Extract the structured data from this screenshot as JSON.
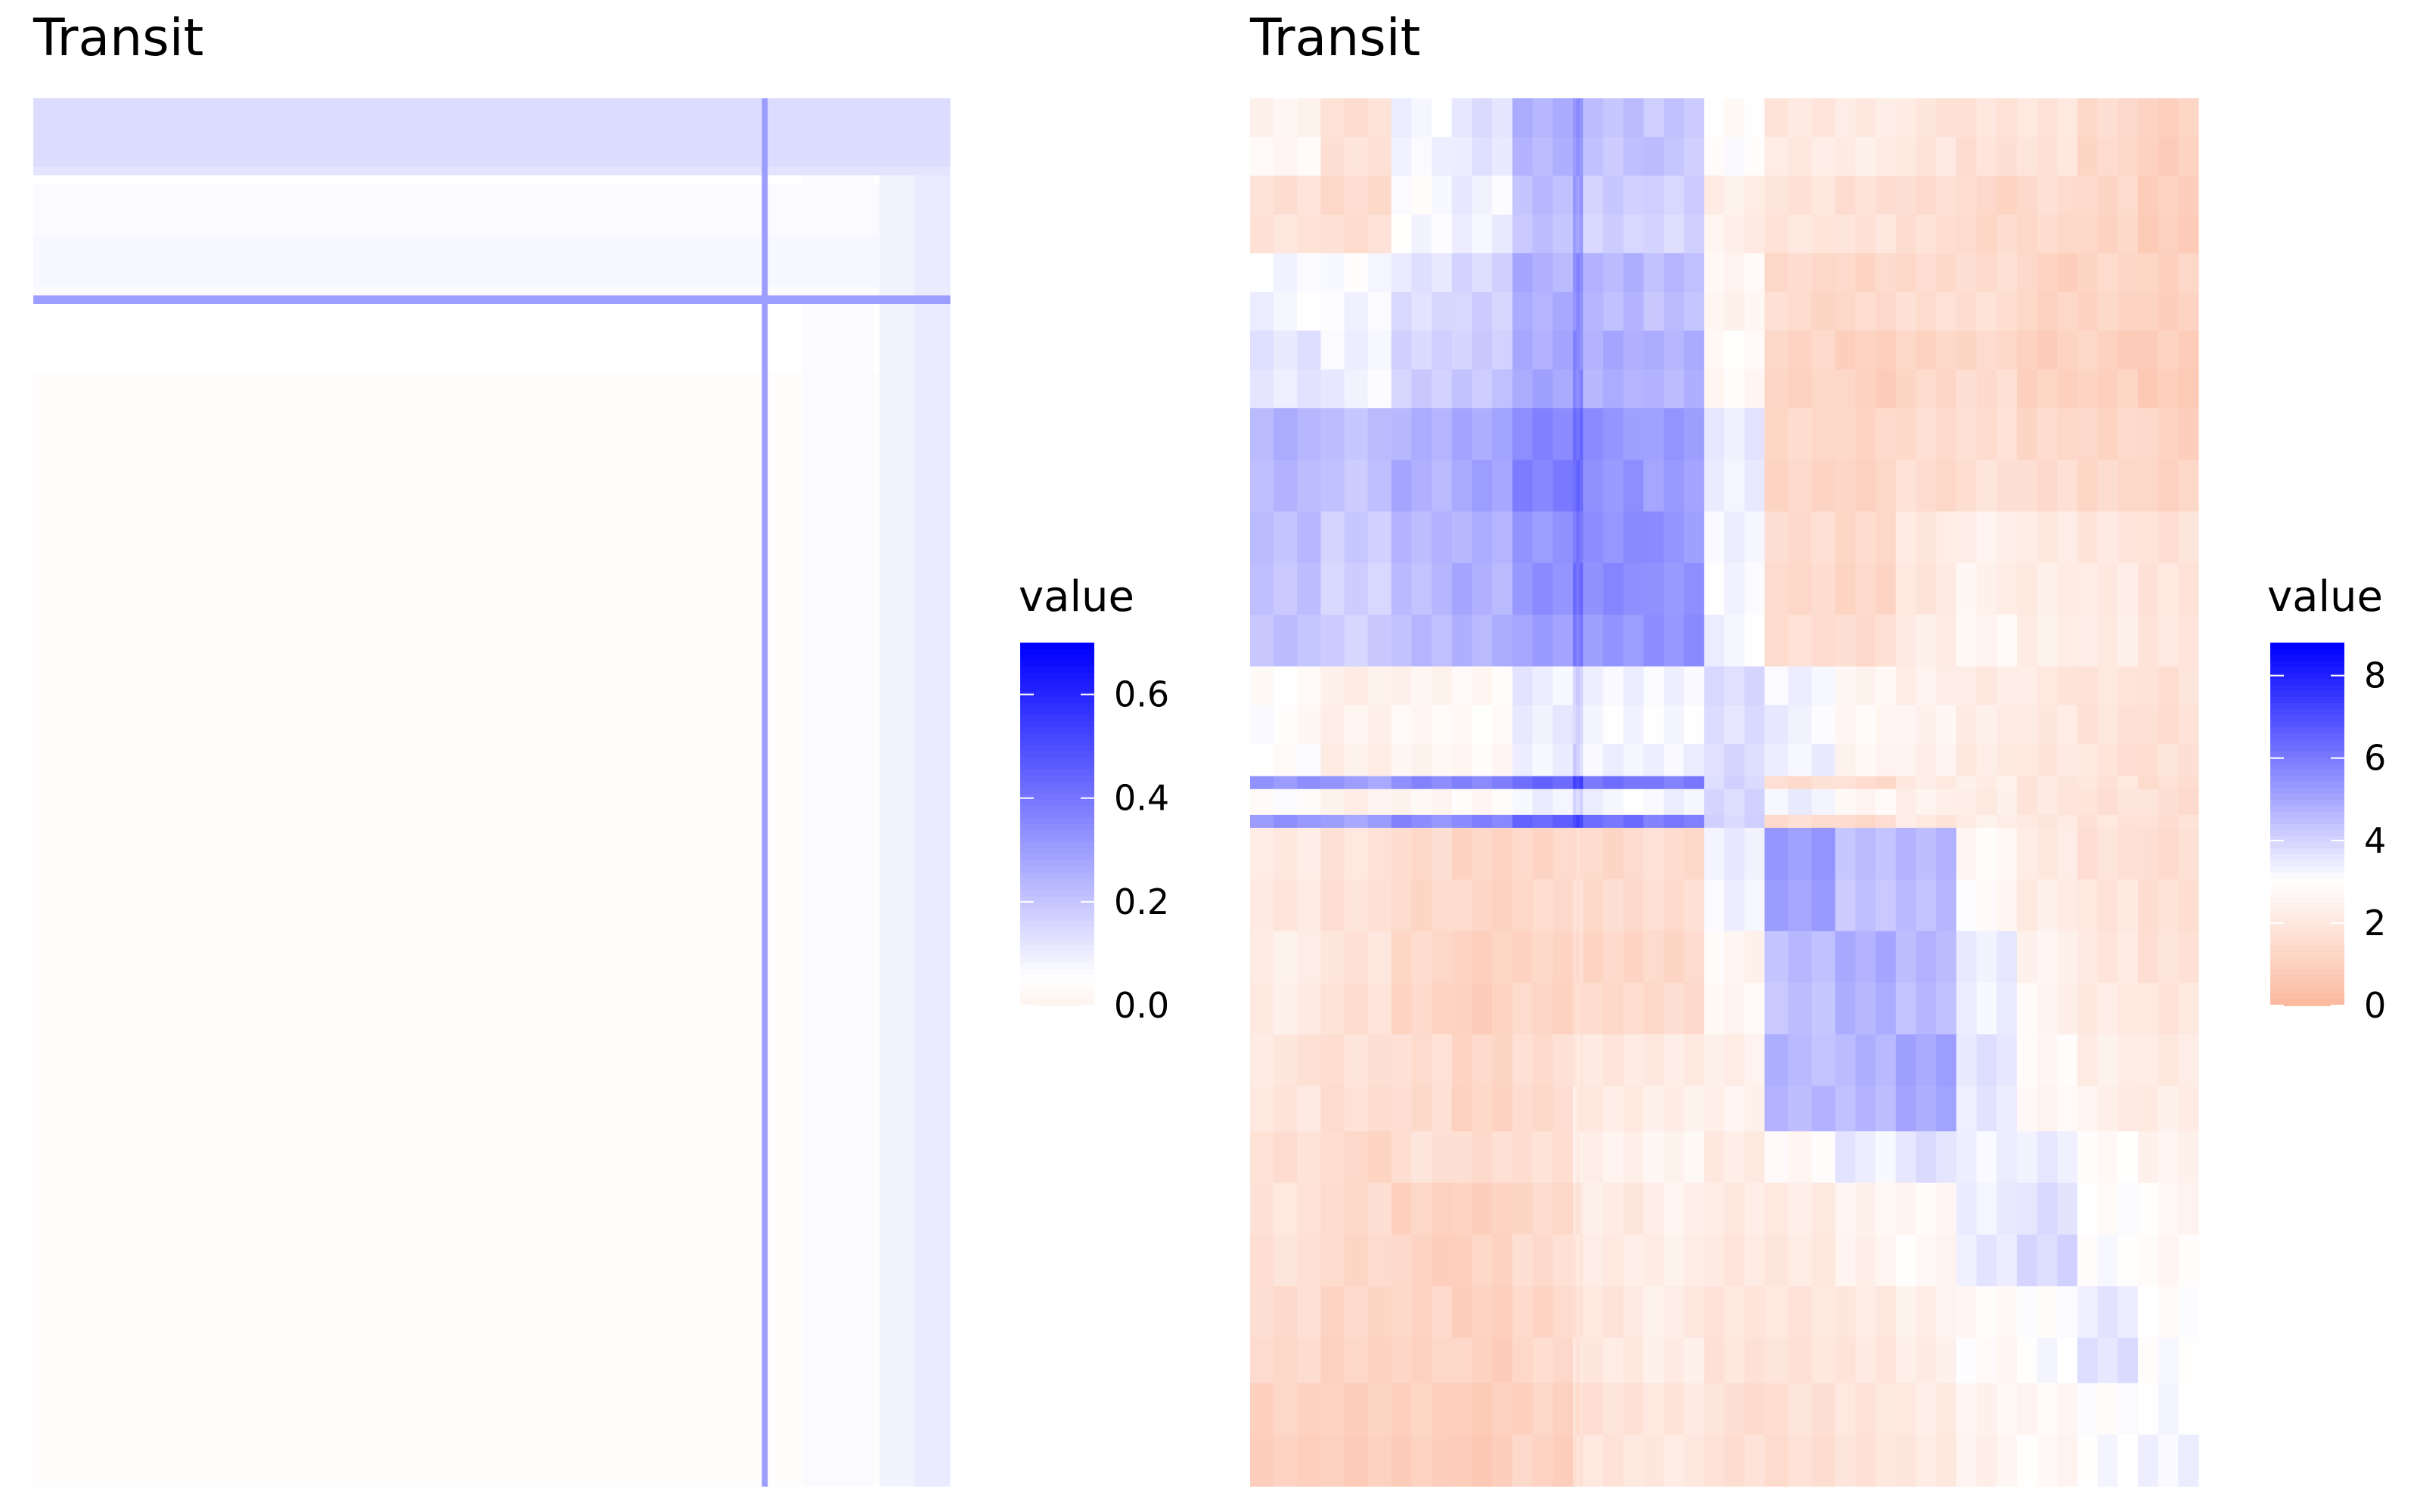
{
  "chart_data": [
    {
      "type": "heatmap",
      "title": "Transit",
      "xlabel": "",
      "ylabel": "",
      "grid": false,
      "legend": {
        "title": "value",
        "position": "right",
        "range": [
          0,
          0.7
        ],
        "ticks": [
          0.0,
          0.2,
          0.4,
          0.6
        ],
        "tick_labels": [
          "0.0",
          "0.2",
          "0.4",
          "0.6"
        ],
        "low_color": "#fff5f0",
        "mid_color": "#ffffff",
        "high_color": "#0000ff",
        "midpoint": 0.05
      },
      "x_blocks": [
        10,
        6,
        6,
        6,
        6,
        6,
        6,
        6,
        6,
        6,
        6,
        6,
        6,
        6,
        6,
        6,
        6,
        6,
        6,
        6,
        1,
        6,
        6,
        6,
        1,
        6,
        6
      ],
      "x_values": [
        0.04,
        0.04,
        0.04,
        0.04,
        0.04,
        0.04,
        0.04,
        0.04,
        0.04,
        0.04,
        0.04,
        0.04,
        0.04,
        0.04,
        0.04,
        0.04,
        0.04,
        0.04,
        0.04,
        0.04,
        0.3,
        0.04,
        0.06,
        0.06,
        0.04,
        0.08,
        0.1
      ],
      "row_blocks": [
        8,
        1,
        1,
        6,
        6,
        1,
        1,
        8,
        8,
        1,
        1,
        8,
        8,
        8,
        8,
        8,
        8,
        8,
        8,
        8,
        8,
        8,
        8,
        8,
        8,
        8
      ],
      "row_values": [
        0.14,
        0.12,
        0.05,
        0.06,
        0.07,
        0.06,
        0.3,
        0.05,
        0.04,
        0.035,
        0.03,
        0.03,
        0.025,
        0.02,
        0.02,
        0.02,
        0.02,
        0.02,
        0.02,
        0.02,
        0.02,
        0.02,
        0.02,
        0.02,
        0.02,
        0.02
      ]
    },
    {
      "type": "heatmap",
      "title": "Transit",
      "xlabel": "",
      "ylabel": "",
      "grid": false,
      "legend": {
        "title": "value",
        "position": "right",
        "range": [
          0,
          8.8
        ],
        "ticks": [
          0,
          2,
          4,
          6,
          8
        ],
        "tick_labels": [
          "0",
          "2",
          "4",
          "6",
          "8"
        ],
        "low_color": "#fcbba1",
        "mid_color": "#ffffff",
        "high_color": "#0000ff",
        "midpoint": 3
      },
      "block_sizes": [
        7,
        7,
        6,
        6,
        6,
        1,
        6,
        6,
        6,
        7,
        6,
        6,
        6,
        6,
        6,
        6
      ],
      "block_values": [
        [
          2.6,
          1.7,
          3.2,
          3.6,
          4.7,
          5.5,
          4.4,
          4.3,
          2.9,
          2.0,
          2.2,
          1.9,
          1.7,
          1.8,
          1.4,
          1.0
        ],
        [
          1.7,
          1.5,
          3.1,
          3.3,
          4.4,
          5.2,
          4.1,
          4.0,
          2.3,
          1.8,
          1.7,
          1.6,
          1.3,
          1.4,
          1.2,
          0.9
        ],
        [
          3.2,
          3.1,
          3.7,
          4.0,
          4.8,
          5.6,
          4.6,
          4.5,
          2.6,
          1.4,
          1.3,
          1.5,
          1.6,
          1.1,
          1.2,
          1.0
        ],
        [
          3.6,
          3.3,
          4.0,
          4.2,
          5.0,
          5.7,
          4.8,
          4.7,
          2.8,
          1.2,
          1.0,
          1.2,
          1.4,
          1.0,
          1.0,
          0.8
        ],
        [
          4.7,
          4.4,
          4.8,
          5.0,
          5.8,
          6.4,
          5.4,
          5.2,
          3.4,
          1.3,
          1.2,
          1.5,
          1.6,
          1.4,
          1.3,
          1.1
        ],
        [
          5.5,
          5.2,
          5.6,
          5.7,
          6.4,
          7.2,
          6.2,
          6.0,
          4.0,
          1.6,
          1.5,
          2.0,
          2.2,
          1.9,
          1.8,
          1.6
        ],
        [
          4.4,
          4.1,
          4.6,
          4.8,
          5.4,
          6.2,
          5.6,
          5.4,
          3.2,
          1.4,
          1.3,
          2.0,
          2.4,
          2.1,
          2.0,
          1.8
        ],
        [
          4.3,
          4.0,
          4.5,
          4.7,
          5.2,
          6.0,
          5.4,
          5.6,
          3.2,
          1.5,
          1.4,
          2.2,
          2.6,
          2.3,
          2.2,
          2.0
        ],
        [
          2.9,
          2.3,
          2.6,
          2.8,
          3.4,
          4.0,
          3.2,
          3.2,
          3.8,
          3.3,
          2.6,
          2.4,
          2.2,
          2.0,
          1.8,
          1.6
        ],
        [
          2.0,
          1.8,
          1.4,
          1.2,
          1.3,
          1.6,
          1.4,
          1.5,
          3.3,
          5.2,
          4.4,
          4.6,
          2.8,
          2.1,
          1.8,
          1.6
        ],
        [
          2.2,
          1.7,
          1.3,
          1.0,
          1.2,
          1.5,
          1.3,
          1.4,
          2.6,
          4.4,
          4.8,
          4.6,
          3.4,
          2.5,
          2.0,
          1.8
        ],
        [
          1.9,
          1.6,
          1.5,
          1.2,
          1.5,
          2.0,
          2.0,
          2.2,
          2.4,
          4.6,
          4.6,
          5.0,
          3.6,
          2.7,
          2.3,
          2.1
        ],
        [
          1.7,
          1.3,
          1.6,
          1.4,
          1.6,
          2.2,
          2.4,
          2.6,
          2.2,
          2.8,
          3.4,
          3.6,
          3.2,
          3.4,
          2.8,
          2.5
        ],
        [
          1.8,
          1.4,
          1.1,
          1.0,
          1.4,
          1.9,
          2.1,
          2.3,
          2.0,
          2.1,
          2.5,
          2.7,
          3.4,
          3.8,
          3.0,
          2.7
        ],
        [
          1.4,
          1.2,
          1.2,
          1.0,
          1.3,
          1.8,
          2.0,
          2.2,
          1.8,
          1.8,
          2.0,
          2.3,
          2.8,
          3.0,
          3.6,
          3.0
        ],
        [
          1.0,
          0.9,
          1.0,
          0.8,
          1.1,
          1.6,
          1.8,
          2.0,
          1.6,
          1.6,
          1.8,
          2.1,
          2.5,
          2.7,
          3.0,
          3.2
        ]
      ],
      "row_blocks": [
        {
          "block": 0,
          "span": 6
        },
        {
          "block": 0,
          "span": 6
        },
        {
          "block": 1,
          "span": 6
        },
        {
          "block": 1,
          "span": 6
        },
        {
          "block": 2,
          "span": 6
        },
        {
          "block": 2,
          "span": 6
        },
        {
          "block": 3,
          "span": 6
        },
        {
          "block": 3,
          "span": 6
        },
        {
          "block": 4,
          "span": 8
        },
        {
          "block": 4,
          "span": 8
        },
        {
          "block": 6,
          "span": 8
        },
        {
          "block": 6,
          "span": 8
        },
        {
          "block": 7,
          "span": 8
        },
        {
          "block": 8,
          "span": 6
        },
        {
          "block": 8,
          "span": 6
        },
        {
          "block": 8,
          "span": 5
        },
        {
          "block": 5,
          "span": 2
        },
        {
          "block": 8,
          "span": 4
        },
        {
          "block": 5,
          "span": 2
        },
        {
          "block": 9,
          "span": 8
        },
        {
          "block": 9,
          "span": 8
        },
        {
          "block": 10,
          "span": 8
        },
        {
          "block": 10,
          "span": 8
        },
        {
          "block": 11,
          "span": 8
        },
        {
          "block": 11,
          "span": 7
        },
        {
          "block": 12,
          "span": 8
        },
        {
          "block": 13,
          "span": 8
        },
        {
          "block": 13,
          "span": 8
        },
        {
          "block": 14,
          "span": 8
        },
        {
          "block": 14,
          "span": 7
        },
        {
          "block": 15,
          "span": 8
        },
        {
          "block": 15,
          "span": 8
        }
      ]
    }
  ]
}
